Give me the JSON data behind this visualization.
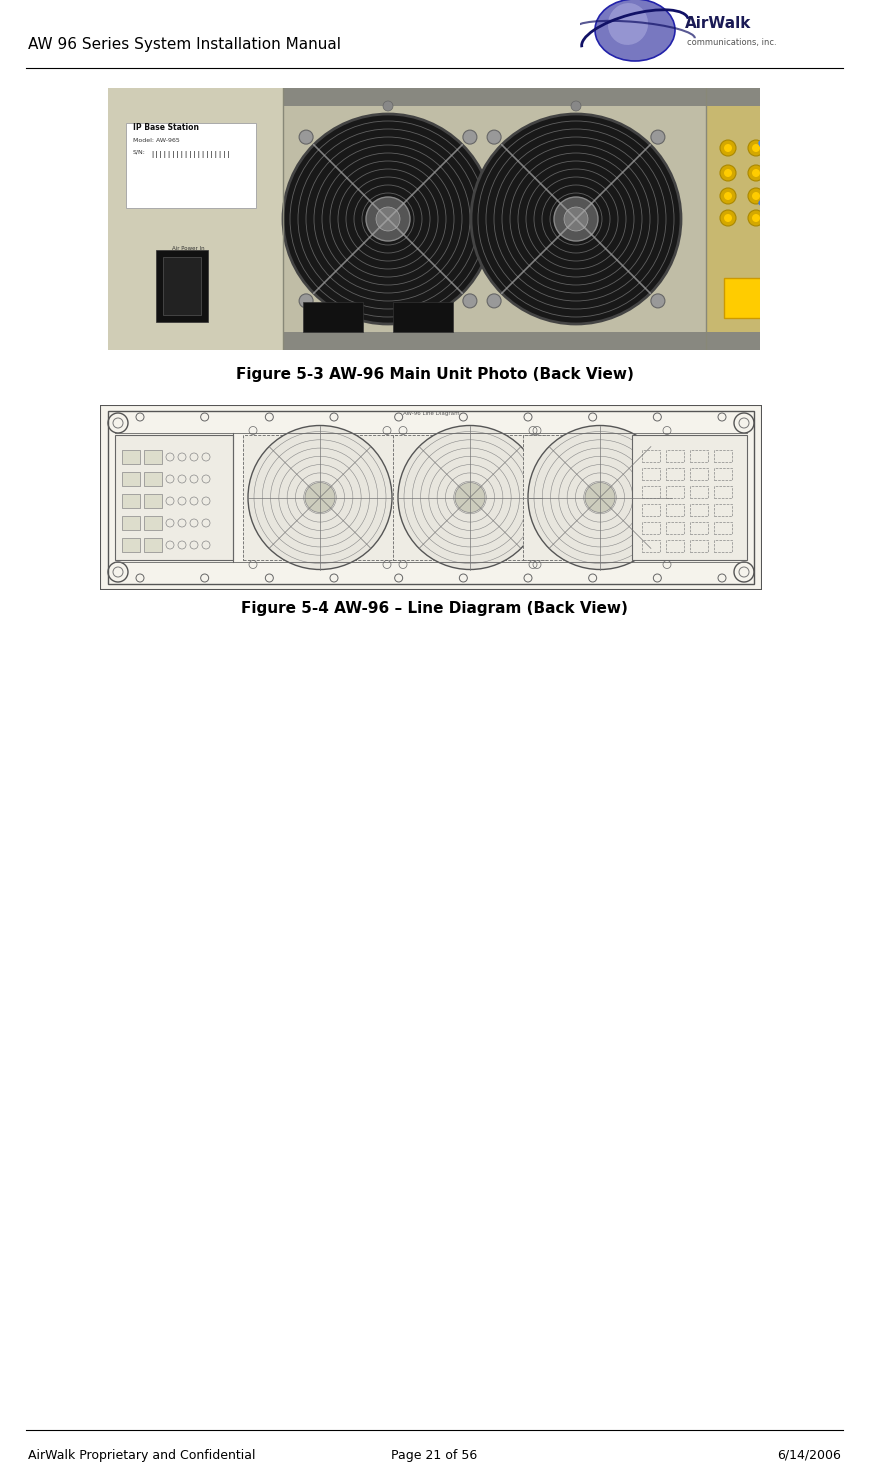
{
  "page_width": 8.69,
  "page_height": 14.75,
  "bg_color": "#ffffff",
  "header_title": "AW 96 Series System Installation Manual",
  "header_title_fontsize": 11,
  "header_title_color": "#000000",
  "footer_left": "AirWalk Proprietary and Confidential",
  "footer_center": "Page 21 of 56",
  "footer_right": "6/14/2006",
  "footer_fontsize": 9,
  "caption1": "Figure 5-3 AW-96 Main Unit Photo (Back View)",
  "caption1_fontsize": 11,
  "caption2": "Figure 5-4 AW-96 – Line Diagram (Back View)",
  "caption2_fontsize": 11,
  "photo_color_bg": "#c8c4a8",
  "photo_color_panel": "#d4d0b8",
  "photo_color_fan": "#1a1a1a",
  "photo_color_right": "#c8b870",
  "diagram_color_bg": "#f2f0e8",
  "diagram_color_line": "#333333"
}
